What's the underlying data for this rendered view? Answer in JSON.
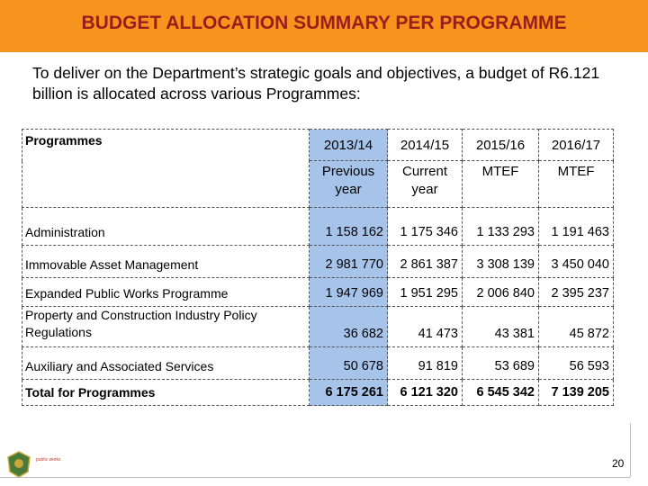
{
  "header": {
    "title": "BUDGET ALLOCATION SUMMARY PER PROGRAMME"
  },
  "intro": "To deliver on the Department’s strategic goals and objectives, a budget of R6.121 billion is allocated across various Programmes:",
  "table": {
    "corner": "Programmes",
    "years": [
      "2013/14",
      "2014/15",
      "2015/16",
      "2016/17"
    ],
    "subheaders": [
      "Previous year",
      "Current year",
      "MTEF",
      "MTEF"
    ],
    "rows": [
      [
        "Administration",
        "1 158 162",
        "1 175 346",
        "1 133 293",
        "1 191 463"
      ],
      [
        "Immovable Asset Management",
        "2 981 770",
        "2 861 387",
        "3 308 139",
        "3 450 040"
      ],
      [
        "Expanded Public Works Programme",
        "1 947 969",
        "1 951 295",
        "2 006 840",
        "2 395 237"
      ],
      [
        "Property and Construction Industry Policy Regulations",
        "36 682",
        "41 473",
        "43 381",
        "45 872"
      ],
      [
        "Auxiliary and Associated Services",
        "50 678",
        "91 819",
        "53 689",
        "56 593"
      ],
      [
        "Total for Programmes",
        "6 175 261",
        "6 121 320",
        "6 545 342",
        "7 139 205"
      ]
    ]
  },
  "footer": {
    "logo_text": "public works",
    "page_number": "20"
  }
}
